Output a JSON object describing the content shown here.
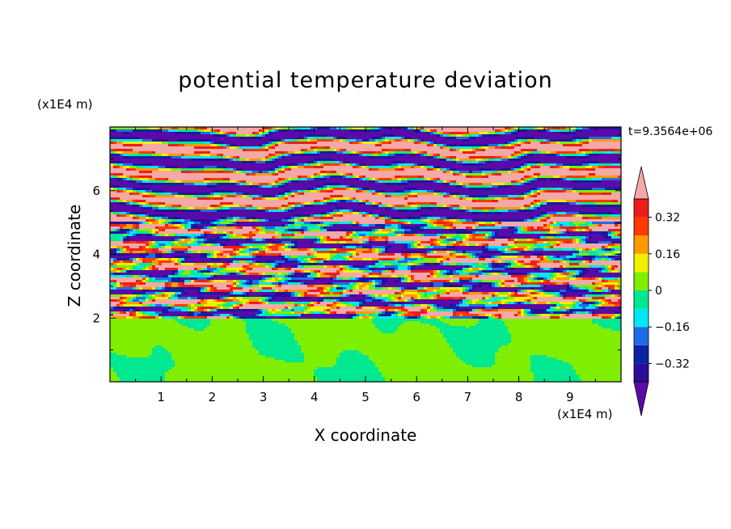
{
  "chart_data": {
    "type": "heatmap",
    "title": "potential temperature deviation",
    "xlabel": "X coordinate",
    "ylabel": "Z coordinate",
    "x_unit": "(x1E4 m)",
    "y_unit": "(x1E4 m)",
    "time_label": "t=9.3564e+06",
    "xlim": [
      0,
      10
    ],
    "ylim": [
      0,
      8
    ],
    "x_ticks": [
      "1",
      "2",
      "3",
      "4",
      "5",
      "6",
      "7",
      "8",
      "9"
    ],
    "y_ticks": [
      "2",
      "4",
      "6"
    ],
    "colorbar": {
      "levels": [
        -0.4,
        -0.32,
        -0.24,
        -0.16,
        -0.08,
        0,
        0.08,
        0.16,
        0.24,
        0.32,
        0.4
      ],
      "tick_labels": [
        "0.32",
        "0.16",
        "0",
        "-0.16",
        "-0.32"
      ],
      "tick_values": [
        0.32,
        0.16,
        0,
        -0.16,
        -0.32
      ],
      "colors": [
        "#5a0aa8",
        "#2c0c98",
        "#0b22a6",
        "#1f6be8",
        "#00e8f4",
        "#00e890",
        "#80ee00",
        "#f0f000",
        "#ff9a00",
        "#ff3a00",
        "#ee1c1c",
        "#f4a8a8"
      ],
      "extend": "both"
    },
    "regions": [
      {
        "z_range": [
          0,
          2
        ],
        "description_level": "mostly 0 to 0.08 with patches -0.08 to 0",
        "band_levels": [
          0.04,
          -0.04
        ]
      },
      {
        "z_range": [
          2,
          5
        ],
        "description_level": "mixed turbulent layer spanning full range"
      },
      {
        "z_range": [
          5,
          8
        ],
        "description_level": "alternating layers below -0.4 and above 0.4"
      }
    ]
  }
}
